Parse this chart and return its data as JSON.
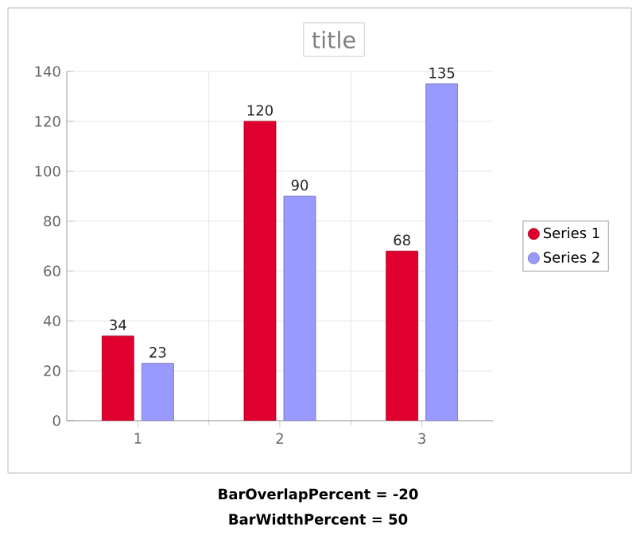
{
  "chart_data": {
    "type": "bar",
    "title": "title",
    "categories": [
      "1",
      "2",
      "3"
    ],
    "series": [
      {
        "name": "Series 1",
        "color": "#e0002f",
        "values": [
          34,
          120,
          68
        ]
      },
      {
        "name": "Series 2",
        "color": "#9999ff",
        "values": [
          23,
          90,
          135
        ]
      }
    ],
    "ylim": [
      0,
      140
    ],
    "yticks": [
      0,
      20,
      40,
      60,
      80,
      100,
      120,
      140
    ],
    "grid": true,
    "legend": "right",
    "data_labels": true,
    "annotations": [
      "BarOverlapPercent = -20",
      "BarWidthPercent = 50"
    ]
  }
}
